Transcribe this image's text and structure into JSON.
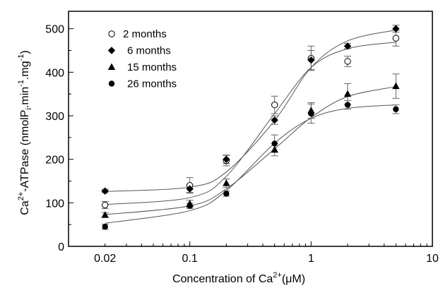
{
  "chart_data": {
    "type": "scatter",
    "title": "",
    "x_axis": {
      "scale": "log",
      "range": [
        0.01,
        10
      ],
      "ticks": [
        0.02,
        0.1,
        1,
        10
      ],
      "tick_labels": [
        "0.02",
        "0.1",
        "1",
        "10"
      ],
      "label_prefix": "Concentration of Ca",
      "label_sup": "2+",
      "label_suffix": "(μM)"
    },
    "y_axis": {
      "scale": "linear",
      "range": [
        0,
        540
      ],
      "ticks": [
        0,
        100,
        200,
        300,
        400,
        500
      ],
      "tick_labels": [
        "0",
        "100",
        "200",
        "300",
        "400",
        "500"
      ],
      "label_prefix": "Ca",
      "label_sup1": "2+",
      "label_mid": "-ATPase (nmolP",
      "label_sub1": "i",
      "label_mid2": ".min",
      "label_sup2": "-1",
      "label_mid3": ".mg",
      "label_sup3": "-1",
      "label_suffix": ")"
    },
    "grid": false,
    "legend_position": "top-left",
    "series": [
      {
        "name": "2 months",
        "marker": "circle-open",
        "x": [
          0.02,
          0.1,
          0.2,
          0.5,
          1,
          2,
          5
        ],
        "y": [
          95,
          140,
          197,
          325,
          432,
          425,
          478
        ],
        "err": [
          8,
          18,
          12,
          20,
          28,
          12,
          18
        ],
        "fit_y": [
          96,
          112,
          161,
          305,
          411,
          454,
          469
        ]
      },
      {
        "name": "6 months",
        "marker": "diamond-filled",
        "x": [
          0.02,
          0.1,
          0.2,
          0.5,
          1,
          2,
          5
        ],
        "y": [
          127,
          132,
          200,
          290,
          428,
          460,
          500
        ],
        "err": [
          4,
          8,
          10,
          10,
          22,
          6,
          8
        ],
        "fit_y": [
          126,
          136,
          171,
          289,
          411,
          472,
          497
        ]
      },
      {
        "name": "15 months",
        "marker": "triangle-filled",
        "x": [
          0.02,
          0.1,
          0.2,
          0.5,
          1,
          2,
          5
        ],
        "y": [
          72,
          98,
          145,
          222,
          312,
          350,
          368
        ],
        "err": [
          5,
          8,
          10,
          14,
          18,
          24,
          28
        ],
        "fit_y": [
          73,
          93,
          132,
          224,
          296,
          344,
          367
        ]
      },
      {
        "name": "26 months",
        "marker": "circle-filled",
        "x": [
          0.02,
          0.1,
          0.2,
          0.5,
          1,
          2,
          5
        ],
        "y": [
          45,
          93,
          121,
          236,
          305,
          325,
          315
        ],
        "err": [
          6,
          6,
          6,
          20,
          22,
          10,
          10
        ],
        "fit_y": [
          53,
          82,
          128,
          237,
          294,
          317,
          325
        ]
      }
    ]
  }
}
